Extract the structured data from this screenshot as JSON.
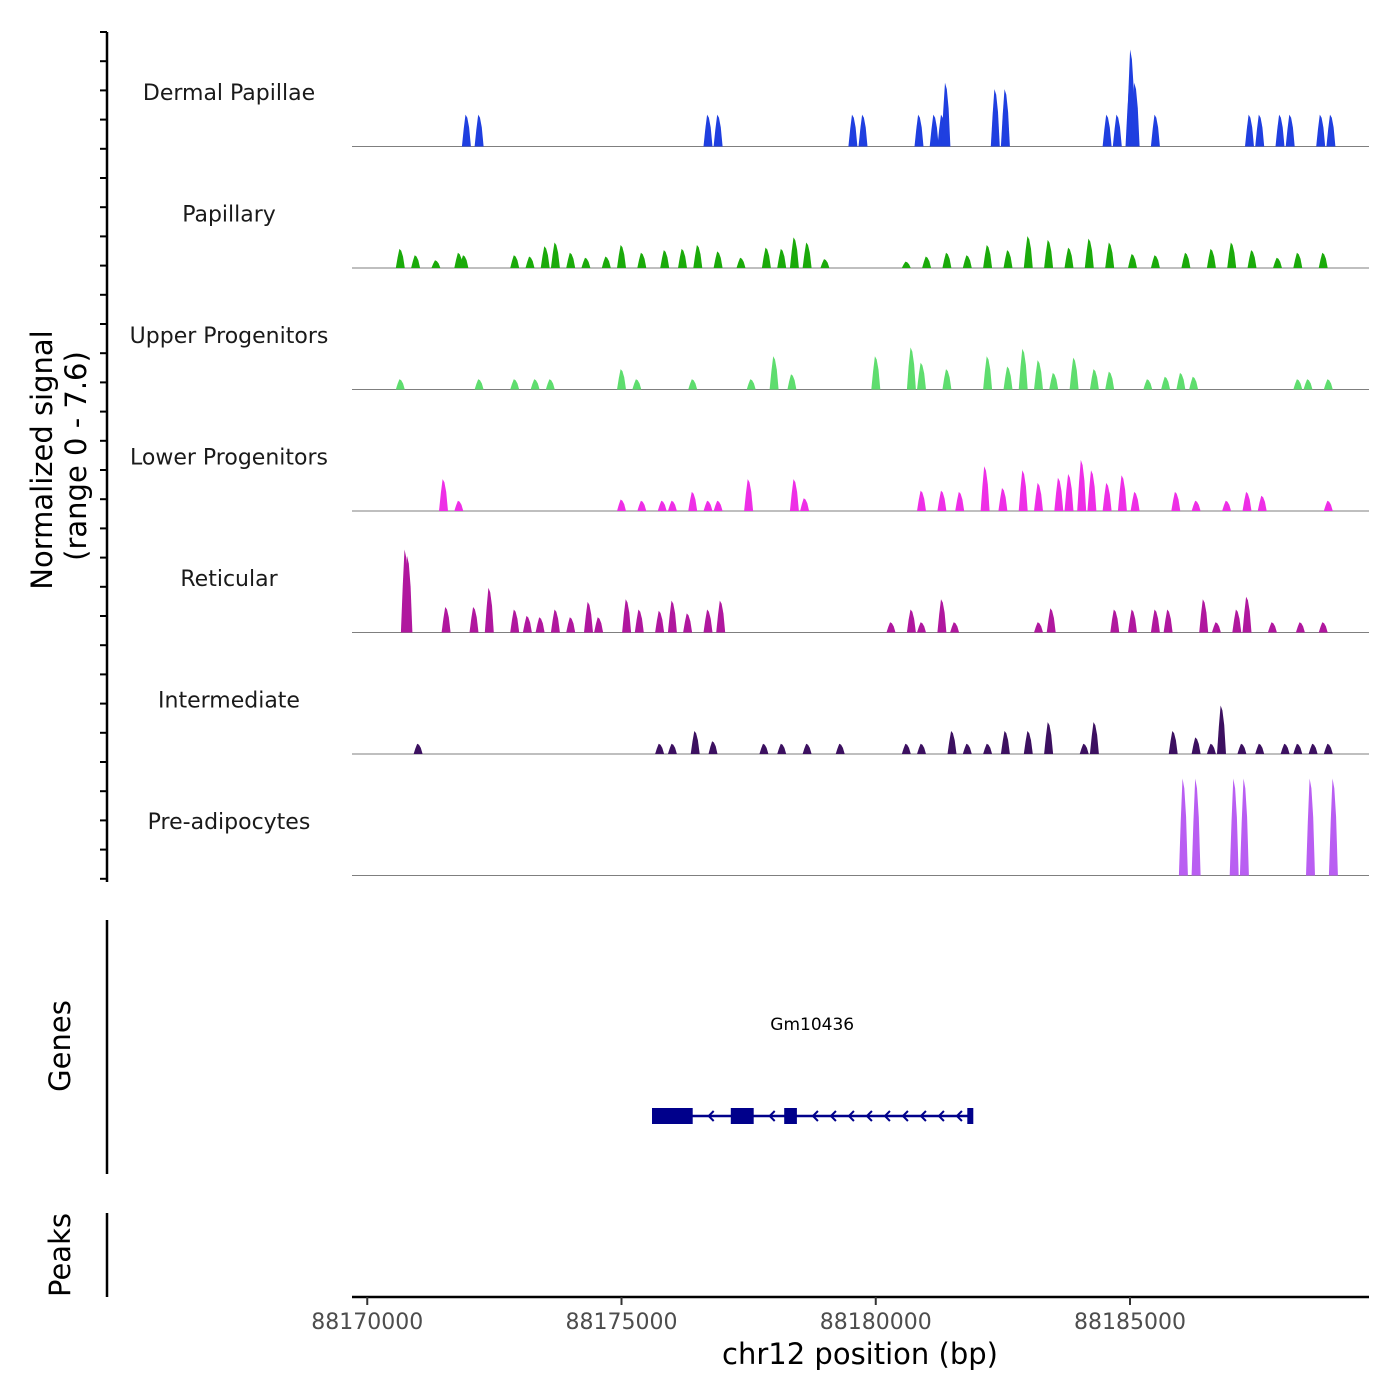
{
  "chart_data": {
    "type": "coverage-track",
    "y_axis_title": "Normalized signal",
    "y_axis_subtitle": "(range 0 - 7.6)",
    "y_range": [
      0,
      7.6
    ],
    "x_axis_title": "chr12 position (bp)",
    "x_range": [
      88169700,
      88189700
    ],
    "x_ticks": [
      88170000,
      88175000,
      88180000,
      88185000
    ],
    "tracks": [
      {
        "name": "Dermal Papillae",
        "color": "#1f3fe0",
        "peaks": [
          [
            88171950,
            2.5
          ],
          [
            88172200,
            2.5
          ],
          [
            88176700,
            2.5
          ],
          [
            88176900,
            2.5
          ],
          [
            88179550,
            2.5
          ],
          [
            88179750,
            2.5
          ],
          [
            88180850,
            2.5
          ],
          [
            88181150,
            2.5
          ],
          [
            88181300,
            2.5
          ],
          [
            88181380,
            5.0
          ],
          [
            88182350,
            4.5
          ],
          [
            88182550,
            4.5
          ],
          [
            88184550,
            2.5
          ],
          [
            88184750,
            2.5
          ],
          [
            88185000,
            5.0
          ],
          [
            88185020,
            7.6
          ],
          [
            88185100,
            5.0
          ],
          [
            88185500,
            2.5
          ],
          [
            88187350,
            2.5
          ],
          [
            88187550,
            2.5
          ],
          [
            88187950,
            2.5
          ],
          [
            88188150,
            2.5
          ],
          [
            88188750,
            2.5
          ],
          [
            88188950,
            2.5
          ]
        ]
      },
      {
        "name": "Papillary",
        "color": "#1aaa0a",
        "peaks": [
          [
            88170650,
            1.5
          ],
          [
            88170950,
            1.0
          ],
          [
            88171350,
            0.6
          ],
          [
            88171800,
            1.2
          ],
          [
            88171900,
            1.0
          ],
          [
            88172900,
            1.0
          ],
          [
            88173200,
            0.9
          ],
          [
            88173500,
            1.7
          ],
          [
            88173700,
            2.0
          ],
          [
            88174000,
            1.2
          ],
          [
            88174300,
            0.8
          ],
          [
            88174700,
            0.9
          ],
          [
            88175000,
            1.8
          ],
          [
            88175400,
            1.2
          ],
          [
            88175850,
            1.4
          ],
          [
            88176200,
            1.5
          ],
          [
            88176500,
            1.8
          ],
          [
            88176900,
            1.3
          ],
          [
            88177350,
            0.8
          ],
          [
            88177850,
            1.6
          ],
          [
            88178150,
            1.5
          ],
          [
            88178400,
            2.4
          ],
          [
            88178650,
            2.0
          ],
          [
            88179000,
            0.7
          ],
          [
            88180600,
            0.5
          ],
          [
            88181000,
            0.9
          ],
          [
            88181400,
            1.2
          ],
          [
            88181800,
            1.0
          ],
          [
            88182200,
            1.8
          ],
          [
            88182600,
            1.4
          ],
          [
            88183000,
            2.5
          ],
          [
            88183400,
            2.2
          ],
          [
            88183800,
            1.6
          ],
          [
            88184200,
            2.3
          ],
          [
            88184600,
            2.0
          ],
          [
            88185050,
            1.1
          ],
          [
            88185500,
            1.0
          ],
          [
            88186100,
            1.2
          ],
          [
            88186600,
            1.5
          ],
          [
            88187000,
            2.0
          ],
          [
            88187400,
            1.4
          ],
          [
            88187900,
            0.8
          ],
          [
            88188300,
            1.2
          ],
          [
            88188800,
            1.2
          ]
        ]
      },
      {
        "name": "Upper Progenitors",
        "color": "#5edd6e",
        "peaks": [
          [
            88170650,
            0.8
          ],
          [
            88172200,
            0.8
          ],
          [
            88172900,
            0.8
          ],
          [
            88173300,
            0.8
          ],
          [
            88173600,
            0.8
          ],
          [
            88175000,
            1.6
          ],
          [
            88175300,
            0.8
          ],
          [
            88176400,
            0.8
          ],
          [
            88177550,
            0.8
          ],
          [
            88178000,
            2.6
          ],
          [
            88178350,
            1.2
          ],
          [
            88180000,
            2.6
          ],
          [
            88180700,
            3.3
          ],
          [
            88180900,
            2.1
          ],
          [
            88181400,
            1.6
          ],
          [
            88182200,
            2.6
          ],
          [
            88182600,
            1.8
          ],
          [
            88182900,
            3.2
          ],
          [
            88183200,
            2.3
          ],
          [
            88183500,
            1.3
          ],
          [
            88183900,
            2.5
          ],
          [
            88184300,
            1.6
          ],
          [
            88184600,
            1.4
          ],
          [
            88185350,
            0.8
          ],
          [
            88185700,
            1.0
          ],
          [
            88186000,
            1.3
          ],
          [
            88186250,
            1.0
          ],
          [
            88188300,
            0.8
          ],
          [
            88188500,
            0.8
          ],
          [
            88188900,
            0.8
          ]
        ]
      },
      {
        "name": "Lower Progenitors",
        "color": "#ee2ee6",
        "peaks": [
          [
            88171500,
            2.5
          ],
          [
            88171800,
            0.8
          ],
          [
            88175000,
            0.9
          ],
          [
            88175400,
            0.8
          ],
          [
            88175800,
            0.8
          ],
          [
            88176000,
            0.8
          ],
          [
            88176400,
            1.5
          ],
          [
            88176700,
            0.8
          ],
          [
            88176900,
            0.8
          ],
          [
            88177500,
            2.5
          ],
          [
            88178400,
            2.5
          ],
          [
            88178600,
            1.0
          ],
          [
            88180900,
            1.6
          ],
          [
            88181300,
            1.6
          ],
          [
            88181650,
            1.5
          ],
          [
            88182150,
            3.5
          ],
          [
            88182500,
            1.8
          ],
          [
            88182900,
            3.2
          ],
          [
            88183200,
            2.2
          ],
          [
            88183600,
            2.6
          ],
          [
            88183800,
            2.9
          ],
          [
            88184050,
            4.0
          ],
          [
            88184250,
            3.2
          ],
          [
            88184550,
            2.2
          ],
          [
            88184850,
            2.8
          ],
          [
            88185100,
            1.5
          ],
          [
            88185900,
            1.5
          ],
          [
            88186300,
            0.8
          ],
          [
            88186900,
            0.8
          ],
          [
            88187300,
            1.5
          ],
          [
            88187600,
            1.2
          ],
          [
            88188900,
            0.8
          ]
        ]
      },
      {
        "name": "Reticular",
        "color": "#b0179e",
        "peaks": [
          [
            88170750,
            6.5
          ],
          [
            88170800,
            6.0
          ],
          [
            88171550,
            2.0
          ],
          [
            88172100,
            2.0
          ],
          [
            88172400,
            3.5
          ],
          [
            88172900,
            1.8
          ],
          [
            88173150,
            1.3
          ],
          [
            88173400,
            1.2
          ],
          [
            88173700,
            1.8
          ],
          [
            88174000,
            1.2
          ],
          [
            88174350,
            2.4
          ],
          [
            88174550,
            1.2
          ],
          [
            88175100,
            2.6
          ],
          [
            88175350,
            1.8
          ],
          [
            88175750,
            1.7
          ],
          [
            88176000,
            2.5
          ],
          [
            88176300,
            1.5
          ],
          [
            88176700,
            1.8
          ],
          [
            88176950,
            2.5
          ],
          [
            88180300,
            0.8
          ],
          [
            88180700,
            1.8
          ],
          [
            88180900,
            0.8
          ],
          [
            88181300,
            2.6
          ],
          [
            88181550,
            0.8
          ],
          [
            88183200,
            0.8
          ],
          [
            88183450,
            1.9
          ],
          [
            88184700,
            1.8
          ],
          [
            88185050,
            1.8
          ],
          [
            88185500,
            1.8
          ],
          [
            88185750,
            1.8
          ],
          [
            88186450,
            2.6
          ],
          [
            88186700,
            0.8
          ],
          [
            88187100,
            1.8
          ],
          [
            88187300,
            2.8
          ],
          [
            88187800,
            0.8
          ],
          [
            88188350,
            0.8
          ],
          [
            88188800,
            0.8
          ]
        ]
      },
      {
        "name": "Intermediate",
        "color": "#3c1060",
        "peaks": [
          [
            88171000,
            0.8
          ],
          [
            88175750,
            0.8
          ],
          [
            88176000,
            0.8
          ],
          [
            88176450,
            1.8
          ],
          [
            88176800,
            1.0
          ],
          [
            88177800,
            0.8
          ],
          [
            88178150,
            0.8
          ],
          [
            88178650,
            0.8
          ],
          [
            88179300,
            0.8
          ],
          [
            88180600,
            0.8
          ],
          [
            88180900,
            0.8
          ],
          [
            88181500,
            1.8
          ],
          [
            88181800,
            0.8
          ],
          [
            88182200,
            0.8
          ],
          [
            88182550,
            1.8
          ],
          [
            88183000,
            1.8
          ],
          [
            88183400,
            2.5
          ],
          [
            88184100,
            0.8
          ],
          [
            88184300,
            2.5
          ],
          [
            88185850,
            1.8
          ],
          [
            88186300,
            1.3
          ],
          [
            88186600,
            0.8
          ],
          [
            88186800,
            3.8
          ],
          [
            88187200,
            0.8
          ],
          [
            88187550,
            0.8
          ],
          [
            88188050,
            0.8
          ],
          [
            88188300,
            0.8
          ],
          [
            88188600,
            0.8
          ],
          [
            88188900,
            0.8
          ]
        ]
      },
      {
        "name": "Pre-adipocytes",
        "color": "#b95ef2",
        "peaks": [
          [
            88186050,
            7.6
          ],
          [
            88186300,
            7.6
          ],
          [
            88187050,
            7.6
          ],
          [
            88187250,
            7.6
          ],
          [
            88188550,
            7.6
          ],
          [
            88189000,
            7.6
          ]
        ]
      }
    ],
    "genes_track_title": "Genes",
    "gene": {
      "name": "Gm10436",
      "strand": "-",
      "start": 88175600,
      "end": 88181900,
      "exons": [
        [
          88175600,
          88176400
        ],
        [
          88177150,
          88177600
        ],
        [
          88178200,
          88178450
        ],
        [
          88181800,
          88181900
        ]
      ]
    },
    "peaks_track_title": "Peaks",
    "peak_regions": []
  }
}
